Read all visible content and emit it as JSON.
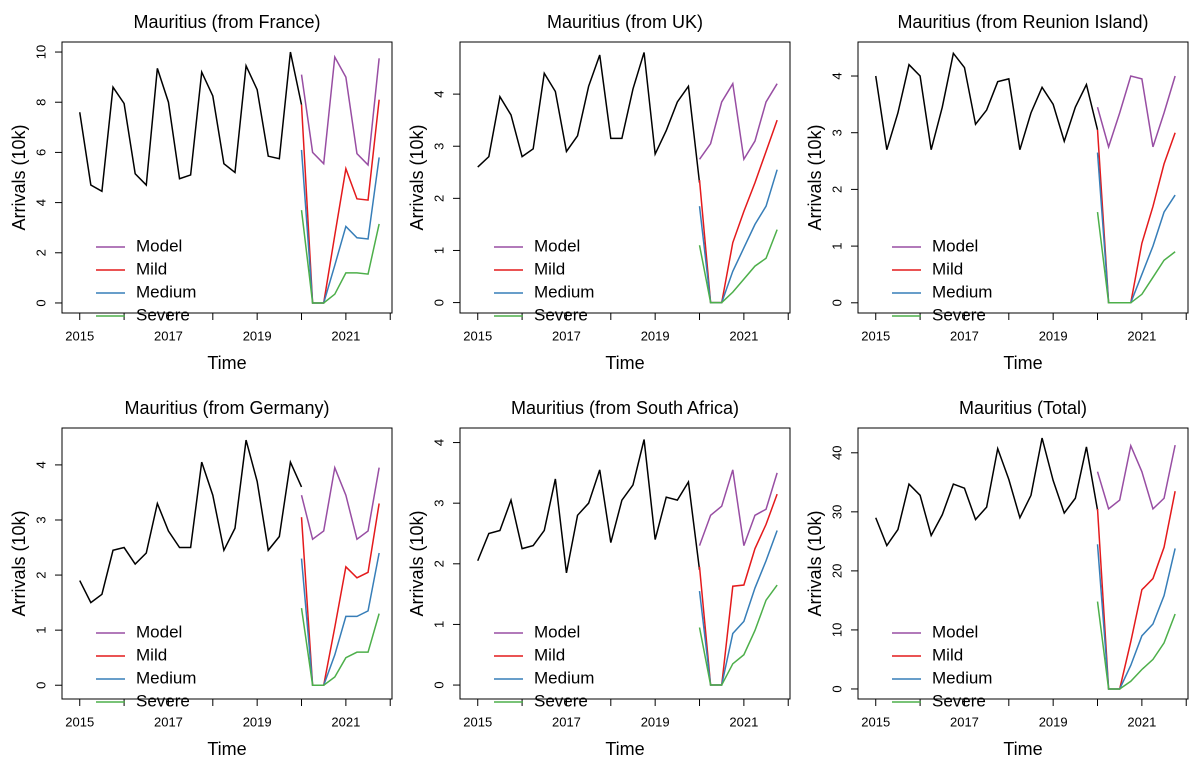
{
  "chart_data": [
    {
      "type": "line",
      "title": "Mauritius (from France)",
      "xlabel": "Time",
      "ylabel": "Arrivals (10k)",
      "x_history": [
        2015,
        2015.25,
        2015.5,
        2015.75,
        2016,
        2016.25,
        2016.5,
        2016.75,
        2017,
        2017.25,
        2017.5,
        2017.75,
        2018,
        2018.25,
        2018.5,
        2018.75,
        2019,
        2019.25,
        2019.5,
        2019.75,
        2020
      ],
      "history": {
        "color": "#000000",
        "values": [
          7.6,
          4.7,
          4.45,
          8.6,
          7.95,
          5.15,
          4.7,
          9.35,
          8.0,
          4.95,
          5.1,
          9.2,
          8.25,
          5.55,
          5.2,
          9.45,
          8.5,
          5.85,
          5.75,
          10.0,
          7.9
        ]
      },
      "x_forecast": [
        2020,
        2020.25,
        2020.5,
        2020.75,
        2021,
        2021.25,
        2021.5,
        2021.75
      ],
      "series": [
        {
          "name": "Model",
          "color": "#984ea3",
          "values": [
            9.1,
            6.0,
            5.55,
            9.8,
            9.0,
            5.95,
            5.5,
            9.75
          ]
        },
        {
          "name": "Mild",
          "color": "#e41a1c",
          "values": [
            7.9,
            0,
            0,
            2.7,
            5.35,
            4.15,
            4.1,
            8.1
          ]
        },
        {
          "name": "Medium",
          "color": "#377eb8",
          "values": [
            6.1,
            0,
            0,
            1.5,
            3.05,
            2.6,
            2.55,
            5.8
          ]
        },
        {
          "name": "Severe",
          "color": "#4daf4a",
          "values": [
            3.7,
            0,
            0,
            0.35,
            1.2,
            1.2,
            1.15,
            3.15
          ]
        }
      ],
      "xlim": [
        2014.6,
        2022.04
      ],
      "xticks": [
        2015,
        2017,
        2019,
        2021
      ],
      "xminor": [
        2016,
        2018,
        2020,
        2022
      ],
      "ylim": [
        -0.4,
        10.4
      ],
      "yticks": [
        0,
        2,
        4,
        6,
        8,
        10
      ],
      "legend": "bottom-left"
    },
    {
      "type": "line",
      "title": "Mauritius (from UK)",
      "xlabel": "Time",
      "ylabel": "Arrivals (10k)",
      "x_history": [
        2015,
        2015.25,
        2015.5,
        2015.75,
        2016,
        2016.25,
        2016.5,
        2016.75,
        2017,
        2017.25,
        2017.5,
        2017.75,
        2018,
        2018.25,
        2018.5,
        2018.75,
        2019,
        2019.25,
        2019.5,
        2019.75,
        2020
      ],
      "history": {
        "color": "#000000",
        "values": [
          2.6,
          2.8,
          3.95,
          3.6,
          2.8,
          2.95,
          4.4,
          4.05,
          2.9,
          3.2,
          4.15,
          4.75,
          3.15,
          3.15,
          4.1,
          4.8,
          2.85,
          3.3,
          3.85,
          4.15,
          2.3
        ]
      },
      "x_forecast": [
        2020,
        2020.25,
        2020.5,
        2020.75,
        2021,
        2021.25,
        2021.5,
        2021.75
      ],
      "series": [
        {
          "name": "Model",
          "color": "#984ea3",
          "values": [
            2.75,
            3.05,
            3.85,
            4.2,
            2.75,
            3.1,
            3.85,
            4.2
          ]
        },
        {
          "name": "Mild",
          "color": "#e41a1c",
          "values": [
            2.35,
            0,
            0,
            1.15,
            1.75,
            2.3,
            2.9,
            3.5
          ]
        },
        {
          "name": "Medium",
          "color": "#377eb8",
          "values": [
            1.85,
            0,
            0,
            0.6,
            1.05,
            1.5,
            1.85,
            2.55
          ]
        },
        {
          "name": "Severe",
          "color": "#4daf4a",
          "values": [
            1.1,
            0,
            0,
            0.2,
            0.45,
            0.7,
            0.85,
            1.4
          ]
        }
      ],
      "xlim": [
        2014.6,
        2022.04
      ],
      "xticks": [
        2015,
        2017,
        2019,
        2021
      ],
      "xminor": [
        2016,
        2018,
        2020,
        2022
      ],
      "ylim": [
        -0.2,
        5.0
      ],
      "yticks": [
        0,
        1,
        2,
        3,
        4
      ],
      "legend": "bottom-left"
    },
    {
      "type": "line",
      "title": "Mauritius (from Reunion Island)",
      "xlabel": "Time",
      "ylabel": "Arrivals (10k)",
      "x_history": [
        2015,
        2015.25,
        2015.5,
        2015.75,
        2016,
        2016.25,
        2016.5,
        2016.75,
        2017,
        2017.25,
        2017.5,
        2017.75,
        2018,
        2018.25,
        2018.5,
        2018.75,
        2019,
        2019.25,
        2019.5,
        2019.75,
        2020
      ],
      "history": {
        "color": "#000000",
        "values": [
          4.0,
          2.7,
          3.35,
          4.2,
          4.0,
          2.7,
          3.45,
          4.4,
          4.15,
          3.15,
          3.4,
          3.9,
          3.95,
          2.7,
          3.35,
          3.8,
          3.5,
          2.85,
          3.45,
          3.85,
          3.05
        ]
      },
      "x_forecast": [
        2020,
        2020.25,
        2020.5,
        2020.75,
        2021,
        2021.25,
        2021.5,
        2021.75
      ],
      "series": [
        {
          "name": "Model",
          "color": "#984ea3",
          "values": [
            3.45,
            2.75,
            3.35,
            4.0,
            3.95,
            2.75,
            3.35,
            4.0
          ]
        },
        {
          "name": "Mild",
          "color": "#e41a1c",
          "values": [
            3.05,
            0,
            0,
            0,
            1.05,
            1.7,
            2.45,
            3.0
          ]
        },
        {
          "name": "Medium",
          "color": "#377eb8",
          "values": [
            2.65,
            0,
            0,
            0,
            0.5,
            1.0,
            1.6,
            1.9
          ]
        },
        {
          "name": "Severe",
          "color": "#4daf4a",
          "values": [
            1.6,
            0,
            0,
            0,
            0.15,
            0.45,
            0.75,
            0.9
          ]
        }
      ],
      "xlim": [
        2014.6,
        2022.04
      ],
      "xticks": [
        2015,
        2017,
        2019,
        2021
      ],
      "xminor": [
        2016,
        2018,
        2020,
        2022
      ],
      "ylim": [
        -0.18,
        4.6
      ],
      "yticks": [
        0,
        1,
        2,
        3,
        4
      ],
      "legend": "bottom-left"
    },
    {
      "type": "line",
      "title": "Mauritius (from Germany)",
      "xlabel": "Time",
      "ylabel": "Arrivals (10k)",
      "x_history": [
        2015,
        2015.25,
        2015.5,
        2015.75,
        2016,
        2016.25,
        2016.5,
        2016.75,
        2017,
        2017.25,
        2017.5,
        2017.75,
        2018,
        2018.25,
        2018.5,
        2018.75,
        2019,
        2019.25,
        2019.5,
        2019.75,
        2020
      ],
      "history": {
        "color": "#000000",
        "values": [
          1.9,
          1.5,
          1.65,
          2.45,
          2.5,
          2.2,
          2.4,
          3.3,
          2.8,
          2.5,
          2.5,
          4.05,
          3.45,
          2.45,
          2.85,
          4.45,
          3.7,
          2.45,
          2.7,
          4.05,
          3.6
        ]
      },
      "x_forecast": [
        2020,
        2020.25,
        2020.5,
        2020.75,
        2021,
        2021.25,
        2021.5,
        2021.75
      ],
      "series": [
        {
          "name": "Model",
          "color": "#984ea3",
          "values": [
            3.45,
            2.65,
            2.8,
            3.95,
            3.45,
            2.65,
            2.8,
            3.95
          ]
        },
        {
          "name": "Mild",
          "color": "#e41a1c",
          "values": [
            3.05,
            0,
            0,
            1.05,
            2.15,
            1.95,
            2.05,
            3.3
          ]
        },
        {
          "name": "Medium",
          "color": "#377eb8",
          "values": [
            2.3,
            0,
            0,
            0.55,
            1.25,
            1.25,
            1.35,
            2.4
          ]
        },
        {
          "name": "Severe",
          "color": "#4daf4a",
          "values": [
            1.4,
            0,
            0,
            0.15,
            0.5,
            0.6,
            0.6,
            1.3
          ]
        }
      ],
      "xlim": [
        2014.6,
        2022.04
      ],
      "xticks": [
        2015,
        2017,
        2019,
        2021
      ],
      "xminor": [
        2016,
        2018,
        2020,
        2022
      ],
      "ylim": [
        -0.25,
        4.67
      ],
      "yticks": [
        0,
        1,
        2,
        3,
        4
      ],
      "legend": "bottom-left"
    },
    {
      "type": "line",
      "title": "Mauritius (from South Africa)",
      "xlabel": "Time",
      "ylabel": "Arrivals (10k)",
      "x_history": [
        2015,
        2015.25,
        2015.5,
        2015.75,
        2016,
        2016.25,
        2016.5,
        2016.75,
        2017,
        2017.25,
        2017.5,
        2017.75,
        2018,
        2018.25,
        2018.5,
        2018.75,
        2019,
        2019.25,
        2019.5,
        2019.75,
        2020
      ],
      "history": {
        "color": "#000000",
        "values": [
          2.05,
          2.5,
          2.55,
          3.05,
          2.25,
          2.3,
          2.55,
          3.4,
          1.85,
          2.8,
          3.0,
          3.55,
          2.35,
          3.05,
          3.3,
          4.05,
          2.4,
          3.1,
          3.05,
          3.35,
          1.9
        ]
      },
      "x_forecast": [
        2020,
        2020.25,
        2020.5,
        2020.75,
        2021,
        2021.25,
        2021.5,
        2021.75
      ],
      "series": [
        {
          "name": "Model",
          "color": "#984ea3",
          "values": [
            2.3,
            2.8,
            2.95,
            3.55,
            2.3,
            2.8,
            2.9,
            3.5
          ]
        },
        {
          "name": "Mild",
          "color": "#e41a1c",
          "values": [
            1.95,
            0,
            0,
            1.63,
            1.65,
            2.25,
            2.65,
            3.15
          ]
        },
        {
          "name": "Medium",
          "color": "#377eb8",
          "values": [
            1.55,
            0,
            0,
            0.85,
            1.05,
            1.6,
            2.05,
            2.55
          ]
        },
        {
          "name": "Severe",
          "color": "#4daf4a",
          "values": [
            0.95,
            0,
            0,
            0.35,
            0.5,
            0.9,
            1.4,
            1.65
          ]
        }
      ],
      "xlim": [
        2014.6,
        2022.04
      ],
      "xticks": [
        2015,
        2017,
        2019,
        2021
      ],
      "xminor": [
        2016,
        2018,
        2020,
        2022
      ],
      "ylim": [
        -0.23,
        4.24
      ],
      "yticks": [
        0,
        1,
        2,
        3,
        4
      ],
      "legend": "bottom-left"
    },
    {
      "type": "line",
      "title": "Mauritius (Total)",
      "xlabel": "Time",
      "ylabel": "Arrivals (10k)",
      "x_history": [
        2015,
        2015.25,
        2015.5,
        2015.75,
        2016,
        2016.25,
        2016.5,
        2016.75,
        2017,
        2017.25,
        2017.5,
        2017.75,
        2018,
        2018.25,
        2018.5,
        2018.75,
        2019,
        2019.25,
        2019.5,
        2019.75,
        2020
      ],
      "history": {
        "color": "#000000",
        "values": [
          29,
          24.3,
          27,
          34.7,
          32.8,
          26,
          29.5,
          34.7,
          34,
          28.7,
          30.8,
          40.7,
          35.5,
          29,
          32.8,
          42.5,
          35.3,
          29.8,
          32.3,
          41,
          30.3
        ]
      },
      "x_forecast": [
        2020,
        2020.25,
        2020.5,
        2020.75,
        2021,
        2021.25,
        2021.5,
        2021.75
      ],
      "series": [
        {
          "name": "Model",
          "color": "#984ea3",
          "values": [
            36.8,
            30.5,
            32,
            41.2,
            36.8,
            30.5,
            32.3,
            41.3
          ]
        },
        {
          "name": "Mild",
          "color": "#e41a1c",
          "values": [
            30.5,
            0,
            0,
            8,
            16.8,
            18.7,
            24,
            33.5
          ]
        },
        {
          "name": "Medium",
          "color": "#377eb8",
          "values": [
            24.5,
            0,
            0,
            4,
            9,
            11,
            15.8,
            23.8
          ]
        },
        {
          "name": "Severe",
          "color": "#4daf4a",
          "values": [
            14.8,
            0,
            0,
            1.3,
            3.3,
            5,
            7.8,
            12.7
          ]
        }
      ],
      "xlim": [
        2014.6,
        2022.04
      ],
      "xticks": [
        2015,
        2017,
        2019,
        2021
      ],
      "xminor": [
        2016,
        2018,
        2020,
        2022
      ],
      "ylim": [
        -1.7,
        44.2
      ],
      "yticks": [
        0,
        10,
        20,
        30,
        40
      ],
      "legend": "bottom-left"
    }
  ]
}
